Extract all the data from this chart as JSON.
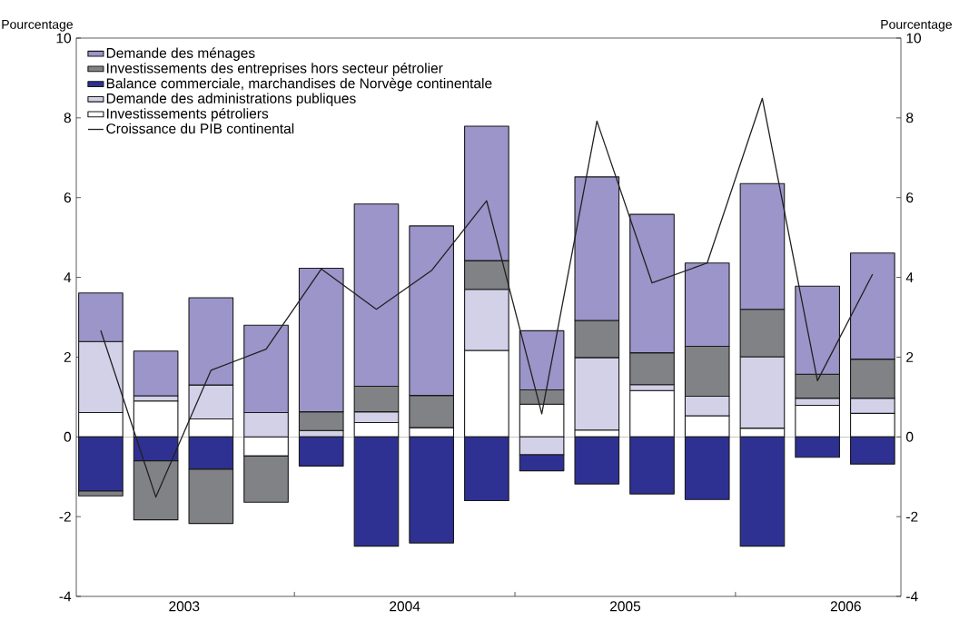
{
  "chart_data": {
    "type": "bar",
    "stacked": true,
    "x": [
      "2003-02-15",
      "2003-05-15",
      "2003-08-15",
      "2003-11-15",
      "2004-02-15",
      "2004-05-15",
      "2004-08-15",
      "2004-11-15",
      "2005-02-15",
      "2005-05-15",
      "2005-08-15",
      "2005-11-15",
      "2006-02-15",
      "2006-05-15",
      "2006-08-15"
    ],
    "series": [
      {
        "name": "Investissements pétroliers",
        "color": "#ffffff",
        "values": [
          0.61,
          0.9,
          0.45,
          -0.48,
          0,
          0.36,
          0.23,
          2.17,
          0.82,
          0.17,
          1.16,
          0.53,
          0.22,
          0.79,
          0.59
        ]
      },
      {
        "name": "Demande des administrations publiques",
        "color": "#d3d1e8",
        "values": [
          1.78,
          0.13,
          0.85,
          0.61,
          0.16,
          0.27,
          0,
          1.53,
          -0.45,
          1.82,
          0.15,
          0.49,
          1.79,
          0.18,
          0.38
        ]
      },
      {
        "name": "Balance commerciale, marchandises de Norvège continentale",
        "color": "#2e3192",
        "values": [
          -1.36,
          -0.6,
          -0.81,
          0,
          -0.73,
          -2.74,
          -2.66,
          -1.6,
          -0.4,
          -1.18,
          -1.43,
          -1.57,
          -2.74,
          -0.51,
          -0.68
        ]
      },
      {
        "name": "Investissements des entreprises hors secteur pétrolier",
        "color": "#808285",
        "values": [
          -0.12,
          -1.48,
          -1.36,
          -1.16,
          0.47,
          0.64,
          0.81,
          0.72,
          0.36,
          0.93,
          0.8,
          1.25,
          1.19,
          0.6,
          0.98
        ]
      },
      {
        "name": "Demande des ménages",
        "color": "#9b95c9",
        "values": [
          1.22,
          1.12,
          2.19,
          2.19,
          3.6,
          4.57,
          4.25,
          3.37,
          1.48,
          3.6,
          3.47,
          2.09,
          3.15,
          2.21,
          2.66
        ]
      },
      {
        "name": "Croissance du PIB continental",
        "type": "line",
        "color": "#231f20",
        "values": [
          2.67,
          -1.51,
          1.67,
          2.2,
          4.21,
          3.2,
          4.17,
          5.92,
          0.58,
          7.92,
          3.86,
          4.36,
          8.49,
          1.41,
          4.08
        ]
      }
    ],
    "xlim": [
      "2003-01-05",
      "2006-10-01"
    ],
    "xticks": [
      {
        "value": "2003-07-01",
        "label": "2003"
      },
      {
        "value": "2004-01-01",
        "label": null
      },
      {
        "value": "2004-07-01",
        "label": "2004"
      },
      {
        "value": "2005-01-01",
        "label": null
      },
      {
        "value": "2005-07-01",
        "label": "2005"
      },
      {
        "value": "2006-01-01",
        "label": null
      },
      {
        "value": "2006-07-01",
        "label": "2006"
      }
    ],
    "ylim": [
      -4,
      10
    ],
    "yticks": [
      -4,
      -2,
      0,
      2,
      4,
      6,
      8,
      10
    ],
    "y2lim": [
      -4,
      10
    ],
    "y2ticks": [
      -4,
      -2,
      0,
      2,
      4,
      6,
      8,
      10
    ],
    "ylabel": "Pourcentage",
    "y2label": "Pourcentage",
    "legend": "top left"
  }
}
